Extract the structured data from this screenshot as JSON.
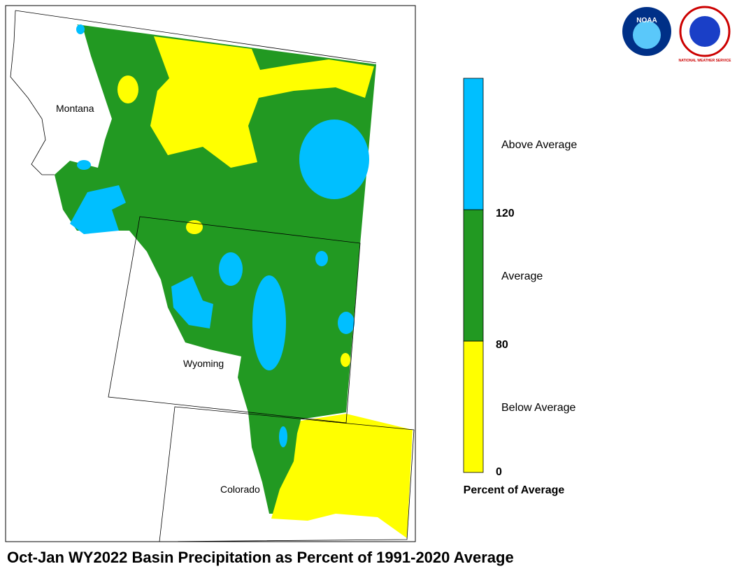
{
  "title": "Oct-Jan WY2022 Basin Precipitation as Percent of 1991-2020 Average",
  "states": [
    "Montana",
    "Wyoming",
    "Colorado"
  ],
  "logos": [
    "NOAA",
    "NATIONAL WEATHER SERVICE"
  ],
  "legend": {
    "title": "Percent of Average",
    "ticks": [
      0,
      80,
      120
    ],
    "bands": [
      {
        "label": "Below Average",
        "color": "#ffff00"
      },
      {
        "label": "Average",
        "color": "#229922"
      },
      {
        "label": "Above Average",
        "color": "#00bfff"
      }
    ]
  }
}
